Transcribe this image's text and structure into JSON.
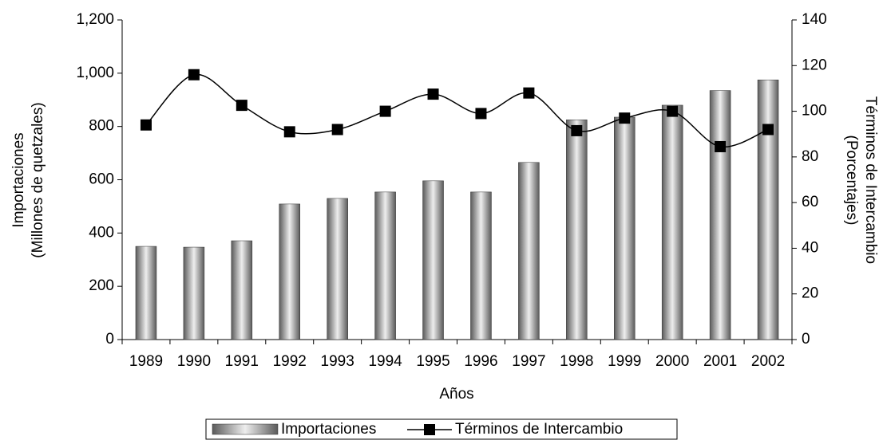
{
  "chart_data": {
    "type": "bar+line",
    "categories": [
      "1989",
      "1990",
      "1991",
      "1992",
      "1993",
      "1994",
      "1995",
      "1996",
      "1997",
      "1998",
      "1999",
      "2000",
      "2001",
      "2002"
    ],
    "series": [
      {
        "name": "Importaciones",
        "type": "bar",
        "color": "#5a5a5a",
        "values": [
          350,
          347,
          371,
          509,
          530,
          554,
          596,
          554,
          665,
          825,
          835,
          880,
          935,
          975
        ]
      },
      {
        "name": "Términos de Intercambio",
        "type": "line",
        "axis": "y2",
        "color": "#000000",
        "values": [
          94,
          116,
          102.6,
          91,
          92,
          100,
          107.5,
          99,
          108,
          91.5,
          97,
          100,
          84.5,
          92
        ]
      }
    ],
    "x_label": "Años",
    "y_label": [
      "Importaciones",
      "(Millones de quetzales)"
    ],
    "y2_label": [
      "Términos de Intercambio",
      "(Porcentajes)"
    ],
    "ylim": [
      0,
      1200
    ],
    "yticks": [
      0,
      200,
      400,
      600,
      800,
      {
        "value": 1000,
        "label": "1,000"
      },
      {
        "value": 1200,
        "label": "1,200"
      }
    ],
    "y2lim": [
      0,
      140
    ],
    "y2ticks": [
      0,
      20,
      40,
      60,
      80,
      100,
      120,
      140
    ],
    "legend": "bottom"
  }
}
